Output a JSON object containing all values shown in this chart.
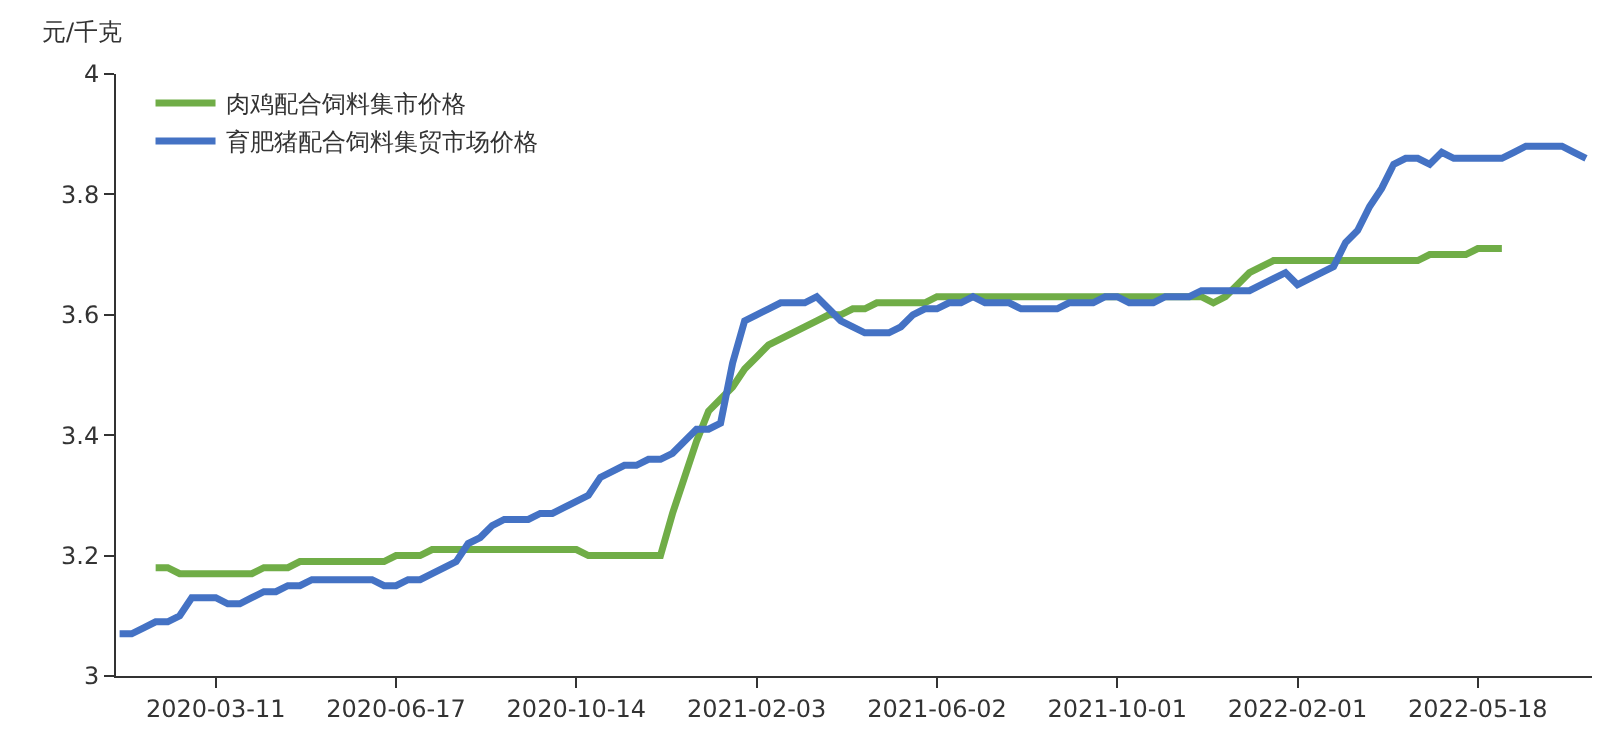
{
  "chart_data": {
    "type": "line",
    "ylabel": "元/千克",
    "categories": [
      null,
      null,
      null,
      null,
      null,
      null,
      null,
      null,
      "2020-03-11",
      null,
      null,
      null,
      null,
      null,
      null,
      null,
      null,
      null,
      null,
      null,
      null,
      null,
      null,
      "2020-06-17",
      null,
      null,
      null,
      null,
      null,
      null,
      null,
      null,
      null,
      null,
      null,
      null,
      null,
      null,
      "2020-10-14",
      null,
      null,
      null,
      null,
      null,
      null,
      null,
      null,
      null,
      null,
      null,
      null,
      null,
      null,
      "2021-02-03",
      null,
      null,
      null,
      null,
      null,
      null,
      null,
      null,
      null,
      null,
      null,
      null,
      null,
      null,
      "2021-06-02",
      null,
      null,
      null,
      null,
      null,
      null,
      null,
      null,
      null,
      null,
      null,
      null,
      null,
      null,
      "2021-10-01",
      null,
      null,
      null,
      null,
      null,
      null,
      null,
      null,
      null,
      null,
      null,
      null,
      null,
      null,
      "2022-02-01",
      null,
      null,
      null,
      null,
      null,
      null,
      null,
      null,
      null,
      null,
      null,
      null,
      null,
      null,
      "2022-05-18",
      null,
      null,
      null,
      null,
      null,
      null,
      null,
      null,
      null
    ],
    "series": [
      {
        "name": "肉鸡配合饲料集市价格",
        "color": "#70ad47",
        "values": [
          null,
          null,
          null,
          3.18,
          3.18,
          3.17,
          3.17,
          3.17,
          3.17,
          3.17,
          3.17,
          3.17,
          3.18,
          3.18,
          3.18,
          3.19,
          3.19,
          3.19,
          3.19,
          3.19,
          3.19,
          3.19,
          3.19,
          3.2,
          3.2,
          3.2,
          3.21,
          3.21,
          3.21,
          3.21,
          3.21,
          3.21,
          3.21,
          3.21,
          3.21,
          3.21,
          3.21,
          3.21,
          3.21,
          3.2,
          3.2,
          3.2,
          3.2,
          3.2,
          3.2,
          3.2,
          3.27,
          3.33,
          3.39,
          3.44,
          3.46,
          3.48,
          3.51,
          3.53,
          3.55,
          3.56,
          3.57,
          3.58,
          3.59,
          3.6,
          3.6,
          3.61,
          3.61,
          3.62,
          3.62,
          3.62,
          3.62,
          3.62,
          3.63,
          3.63,
          3.63,
          3.63,
          3.63,
          3.63,
          3.63,
          3.63,
          3.63,
          3.63,
          3.63,
          3.63,
          3.63,
          3.63,
          3.63,
          3.63,
          3.63,
          3.63,
          3.63,
          3.63,
          3.63,
          3.63,
          3.63,
          3.62,
          3.63,
          3.65,
          3.67,
          3.68,
          3.69,
          3.69,
          3.69,
          3.69,
          3.69,
          3.69,
          3.69,
          3.69,
          3.69,
          3.69,
          3.69,
          3.69,
          3.69,
          3.7,
          3.7,
          3.7,
          3.7,
          3.71,
          3.71,
          3.71,
          null,
          null,
          null,
          null,
          null,
          null,
          null
        ]
      },
      {
        "name": "育肥猪配合饲料集贸市场价格",
        "color": "#4472c4",
        "values": [
          3.07,
          3.07,
          3.08,
          3.09,
          3.09,
          3.1,
          3.13,
          3.13,
          3.13,
          3.12,
          3.12,
          3.13,
          3.14,
          3.14,
          3.15,
          3.15,
          3.16,
          3.16,
          3.16,
          3.16,
          3.16,
          3.16,
          3.15,
          3.15,
          3.16,
          3.16,
          3.17,
          3.18,
          3.19,
          3.22,
          3.23,
          3.25,
          3.26,
          3.26,
          3.26,
          3.27,
          3.27,
          3.28,
          3.29,
          3.3,
          3.33,
          3.34,
          3.35,
          3.35,
          3.36,
          3.36,
          3.37,
          3.39,
          3.41,
          3.41,
          3.42,
          3.52,
          3.59,
          3.6,
          3.61,
          3.62,
          3.62,
          3.62,
          3.63,
          3.61,
          3.59,
          3.58,
          3.57,
          3.57,
          3.57,
          3.58,
          3.6,
          3.61,
          3.61,
          3.62,
          3.62,
          3.63,
          3.62,
          3.62,
          3.62,
          3.61,
          3.61,
          3.61,
          3.61,
          3.62,
          3.62,
          3.62,
          3.63,
          3.63,
          3.62,
          3.62,
          3.62,
          3.63,
          3.63,
          3.63,
          3.64,
          3.64,
          3.64,
          3.64,
          3.64,
          3.65,
          3.66,
          3.67,
          3.65,
          3.66,
          3.67,
          3.68,
          3.72,
          3.74,
          3.78,
          3.81,
          3.85,
          3.86,
          3.86,
          3.85,
          3.87,
          3.86,
          3.86,
          3.86,
          3.86,
          3.86,
          3.87,
          3.88,
          3.88,
          3.88,
          3.88,
          3.87,
          3.86
        ]
      }
    ],
    "ylim": [
      3,
      4
    ],
    "yticks": [
      3,
      3.2,
      3.4,
      3.6,
      3.8,
      4
    ],
    "legend": "top left",
    "marker": "none",
    "line_style": "solid"
  }
}
